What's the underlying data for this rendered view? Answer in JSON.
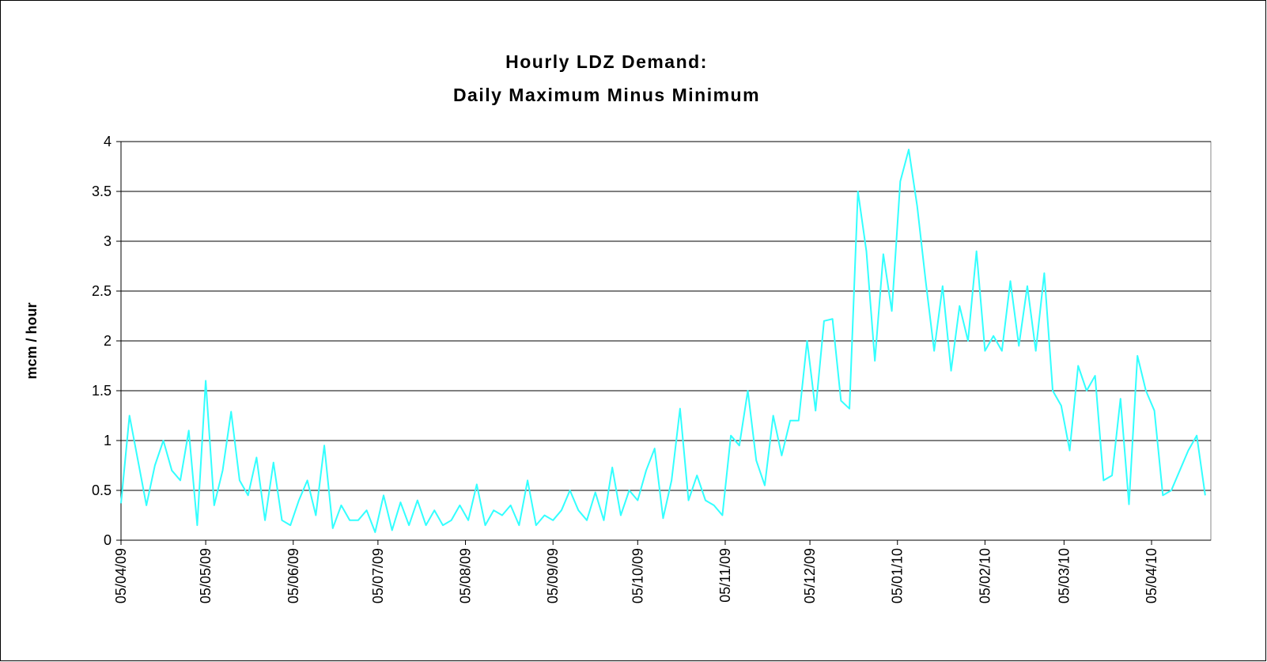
{
  "chart_data": {
    "type": "line",
    "title": "Hourly LDZ Demand:",
    "subtitle": "Daily Maximum Minus Minimum",
    "y_label": "mcm / hour",
    "x": [
      "2009-04-05",
      "2009-04-08",
      "2009-04-11",
      "2009-04-14",
      "2009-04-17",
      "2009-04-20",
      "2009-04-23",
      "2009-04-26",
      "2009-04-29",
      "2009-05-02",
      "2009-05-05",
      "2009-05-08",
      "2009-05-11",
      "2009-05-14",
      "2009-05-17",
      "2009-05-20",
      "2009-05-23",
      "2009-05-26",
      "2009-05-29",
      "2009-06-01",
      "2009-06-04",
      "2009-06-07",
      "2009-06-10",
      "2009-06-13",
      "2009-06-16",
      "2009-06-19",
      "2009-06-22",
      "2009-06-25",
      "2009-06-28",
      "2009-07-01",
      "2009-07-04",
      "2009-07-07",
      "2009-07-10",
      "2009-07-13",
      "2009-07-16",
      "2009-07-19",
      "2009-07-22",
      "2009-07-25",
      "2009-07-28",
      "2009-07-31",
      "2009-08-03",
      "2009-08-06",
      "2009-08-09",
      "2009-08-12",
      "2009-08-15",
      "2009-08-18",
      "2009-08-21",
      "2009-08-24",
      "2009-08-27",
      "2009-08-30",
      "2009-09-02",
      "2009-09-05",
      "2009-09-08",
      "2009-09-11",
      "2009-09-14",
      "2009-09-17",
      "2009-09-20",
      "2009-09-23",
      "2009-09-26",
      "2009-09-29",
      "2009-10-02",
      "2009-10-05",
      "2009-10-08",
      "2009-10-11",
      "2009-10-14",
      "2009-10-17",
      "2009-10-20",
      "2009-10-23",
      "2009-10-26",
      "2009-10-29",
      "2009-11-01",
      "2009-11-04",
      "2009-11-07",
      "2009-11-10",
      "2009-11-13",
      "2009-11-16",
      "2009-11-19",
      "2009-11-22",
      "2009-11-25",
      "2009-11-28",
      "2009-12-01",
      "2009-12-04",
      "2009-12-07",
      "2009-12-10",
      "2009-12-13",
      "2009-12-16",
      "2009-12-19",
      "2009-12-22",
      "2009-12-25",
      "2009-12-28",
      "2009-12-31",
      "2010-01-03",
      "2010-01-06",
      "2010-01-09",
      "2010-01-12",
      "2010-01-15",
      "2010-01-18",
      "2010-01-21",
      "2010-01-24",
      "2010-01-27",
      "2010-01-30",
      "2010-02-02",
      "2010-02-05",
      "2010-02-08",
      "2010-02-11",
      "2010-02-14",
      "2010-02-17",
      "2010-02-20",
      "2010-02-23",
      "2010-02-26",
      "2010-03-01",
      "2010-03-04",
      "2010-03-07",
      "2010-03-10",
      "2010-03-13",
      "2010-03-16",
      "2010-03-19",
      "2010-03-22",
      "2010-03-25",
      "2010-03-28",
      "2010-03-31",
      "2010-04-03",
      "2010-04-06",
      "2010-04-09",
      "2010-04-12",
      "2010-04-15",
      "2010-04-18",
      "2010-04-21",
      "2010-04-24"
    ],
    "series": [
      {
        "name": "mcm / hour",
        "color": "#33ffff",
        "values": [
          0.37,
          1.25,
          0.8,
          0.35,
          0.75,
          1.0,
          0.7,
          0.6,
          1.1,
          0.15,
          1.6,
          0.35,
          0.7,
          1.29,
          0.6,
          0.45,
          0.83,
          0.2,
          0.78,
          0.2,
          0.15,
          0.4,
          0.6,
          0.25,
          0.95,
          0.12,
          0.35,
          0.2,
          0.2,
          0.3,
          0.08,
          0.45,
          0.1,
          0.38,
          0.15,
          0.4,
          0.15,
          0.3,
          0.15,
          0.2,
          0.35,
          0.2,
          0.56,
          0.15,
          0.3,
          0.25,
          0.35,
          0.15,
          0.6,
          0.15,
          0.25,
          0.2,
          0.3,
          0.5,
          0.3,
          0.2,
          0.48,
          0.2,
          0.73,
          0.25,
          0.5,
          0.4,
          0.7,
          0.92,
          0.22,
          0.6,
          1.32,
          0.4,
          0.65,
          0.4,
          0.35,
          0.25,
          1.05,
          0.95,
          1.5,
          0.8,
          0.55,
          1.25,
          0.85,
          1.2,
          1.2,
          2.0,
          1.3,
          2.2,
          2.22,
          1.4,
          1.32,
          3.5,
          2.9,
          1.8,
          2.87,
          2.3,
          3.6,
          3.92,
          3.35,
          2.6,
          1.9,
          2.55,
          1.7,
          2.35,
          2.0,
          2.9,
          1.9,
          2.05,
          1.9,
          2.6,
          1.95,
          2.55,
          1.9,
          2.68,
          1.5,
          1.35,
          0.9,
          1.75,
          1.5,
          1.65,
          0.6,
          0.65,
          1.42,
          0.36,
          1.85,
          1.5,
          1.3,
          0.45,
          0.5,
          0.7,
          0.9,
          1.05,
          0.45
        ]
      }
    ],
    "xlim": [
      "2009-04-05",
      "2010-04-26"
    ],
    "xticks": [
      {
        "value": "2009-04-05",
        "label": "05/04/09"
      },
      {
        "value": "2009-05-05",
        "label": "05/05/09"
      },
      {
        "value": "2009-06-05",
        "label": "05/06/09"
      },
      {
        "value": "2009-07-05",
        "label": "05/07/09"
      },
      {
        "value": "2009-08-05",
        "label": "05/08/09"
      },
      {
        "value": "2009-09-05",
        "label": "05/09/09"
      },
      {
        "value": "2009-10-05",
        "label": "05/10/09"
      },
      {
        "value": "2009-11-05",
        "label": "05/11/09"
      },
      {
        "value": "2009-12-05",
        "label": "05/12/09"
      },
      {
        "value": "2010-01-05",
        "label": "05/01/10"
      },
      {
        "value": "2010-02-05",
        "label": "05/02/10"
      },
      {
        "value": "2010-03-05",
        "label": "05/03/10"
      },
      {
        "value": "2010-04-05",
        "label": "05/04/10"
      }
    ],
    "ylim": [
      0,
      4
    ],
    "yticks": [
      0,
      0.5,
      1,
      1.5,
      2,
      2.5,
      3,
      3.5,
      4
    ],
    "grid": true
  }
}
